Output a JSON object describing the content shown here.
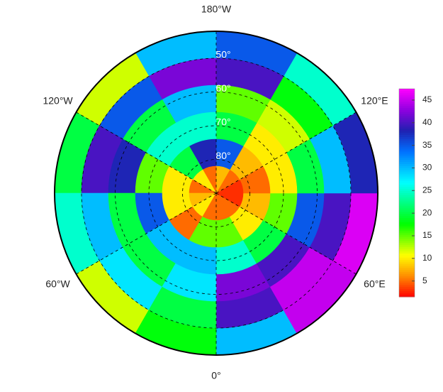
{
  "map": {
    "type": "polar-heatmap",
    "lat_range": [
      42,
      90
    ],
    "lon_labels": [
      {
        "value": 180,
        "label": "180°W"
      },
      {
        "value": -120,
        "label": "120°W"
      },
      {
        "value": 120,
        "label": "120°E"
      },
      {
        "value": -60,
        "label": "60°W"
      },
      {
        "value": 60,
        "label": "60°E"
      },
      {
        "value": 0,
        "label": "0°"
      }
    ],
    "lat_labels": [
      {
        "value": 50,
        "label": "50°"
      },
      {
        "value": 60,
        "label": "60°"
      },
      {
        "value": 70,
        "label": "70°"
      },
      {
        "value": 80,
        "label": "80°"
      }
    ],
    "grid": {
      "lat_edges": [
        42,
        50,
        58,
        66,
        74,
        82,
        90
      ],
      "lon_edges": [
        0,
        30,
        60,
        90,
        120,
        150,
        180,
        210,
        240,
        270,
        300,
        330,
        360
      ],
      "values": [
        [
          30,
          40,
          42,
          25,
          15,
          5
        ],
        [
          45,
          45,
          40,
          20,
          10,
          5
        ],
        [
          46,
          40,
          35,
          15,
          8,
          3
        ],
        [
          38,
          30,
          20,
          10,
          5,
          3
        ],
        [
          25,
          18,
          12,
          10,
          8,
          5
        ],
        [
          35,
          40,
          15,
          20,
          35,
          8
        ],
        [
          30,
          42,
          30,
          25,
          38,
          5
        ],
        [
          12,
          35,
          20,
          25,
          20,
          10
        ],
        [
          20,
          40,
          38,
          15,
          10,
          5
        ],
        [
          25,
          30,
          20,
          35,
          10,
          8
        ],
        [
          12,
          28,
          20,
          30,
          5,
          10
        ],
        [
          18,
          20,
          28,
          30,
          15,
          5
        ]
      ]
    },
    "colorbar": {
      "range": [
        1.5,
        47.5
      ],
      "ticks": [
        5,
        10,
        15,
        20,
        25,
        30,
        35,
        40,
        45
      ]
    }
  }
}
